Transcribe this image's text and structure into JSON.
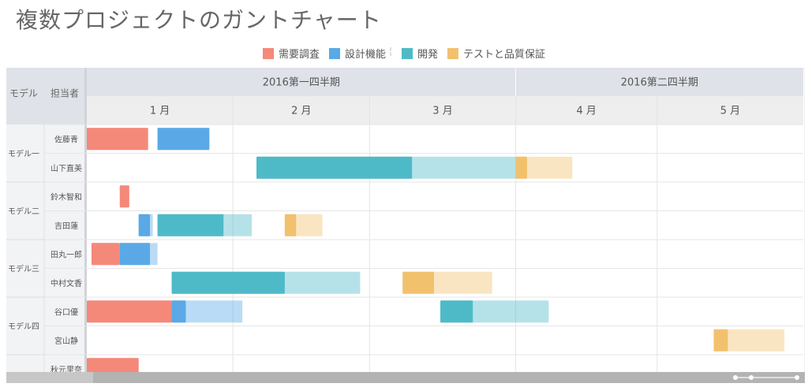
{
  "title": "複数プロジェクトのガントチャート",
  "legend": [
    {
      "label": "需要調査",
      "color": "#f4897a"
    },
    {
      "label": "設計機能",
      "color": "#5aa9e6"
    },
    {
      "label": "開発",
      "color": "#4fbac7"
    },
    {
      "label": "テストと品質保証",
      "color": "#f2c16d"
    }
  ],
  "legend_separator": "¦",
  "colors": {
    "需要調査": "#f4897a",
    "設計機能": "#5aa9e6",
    "開発": "#4fbac7",
    "テストと品質保証": "#f2c16d"
  },
  "chart_data": {
    "type": "gantt",
    "title": "複数プロジェクトのガントチャート",
    "row_header_labels": [
      "モデル",
      "担当者"
    ],
    "x_range": [
      "2016-01-01",
      "2016-05-31"
    ],
    "top_header_groups": [
      {
        "label": "2016第一四半期",
        "start": "2016-01-01",
        "end": "2016-04-01"
      },
      {
        "label": "2016第二四半期",
        "start": "2016-04-01",
        "end": "2016-06-01"
      }
    ],
    "month_ticks": [
      {
        "label": "1 月",
        "start": "2016-01-01",
        "end": "2016-02-01"
      },
      {
        "label": "2 月",
        "start": "2016-02-01",
        "end": "2016-03-01"
      },
      {
        "label": "3 月",
        "start": "2016-03-01",
        "end": "2016-04-01"
      },
      {
        "label": "4 月",
        "start": "2016-04-01",
        "end": "2016-05-01"
      },
      {
        "label": "5 月",
        "start": "2016-05-01",
        "end": "2016-06-01"
      }
    ],
    "groups": [
      {
        "label": "モデル一",
        "rows": [
          "佐藤青",
          "山下直美"
        ]
      },
      {
        "label": "モデル二",
        "rows": [
          "鈴木智和",
          "吉田蓮"
        ]
      },
      {
        "label": "モデル三",
        "rows": [
          "田丸一郎",
          "中村文香"
        ]
      },
      {
        "label": "モデル四",
        "rows": [
          "谷口優",
          "宮山静"
        ]
      },
      {
        "label": "",
        "rows": [
          "秋元里奈"
        ]
      }
    ],
    "tasks": [
      {
        "row": "佐藤青",
        "phase": "需要調査",
        "start": "2016-01-01",
        "end": "2016-01-14",
        "completed": 1
      },
      {
        "row": "佐藤青",
        "phase": "設計機能",
        "start": "2016-01-16",
        "end": "2016-01-27",
        "completed": 1
      },
      {
        "row": "山下直美",
        "phase": "開発",
        "start": "2016-02-06",
        "end": "2016-04-01",
        "completed": 0.6
      },
      {
        "row": "山下直美",
        "phase": "テストと品質保証",
        "start": "2016-04-01",
        "end": "2016-04-13",
        "completed": 0.2
      },
      {
        "row": "鈴木智和",
        "phase": "需要調査",
        "start": "2016-01-08",
        "end": "2016-01-10",
        "completed": 1
      },
      {
        "row": "吉田蓮",
        "phase": "設計機能",
        "start": "2016-01-12",
        "end": "2016-01-15",
        "completed": 0.8
      },
      {
        "row": "吉田蓮",
        "phase": "開発",
        "start": "2016-01-16",
        "end": "2016-02-05",
        "completed": 0.7
      },
      {
        "row": "吉田蓮",
        "phase": "テストと品質保証",
        "start": "2016-02-12",
        "end": "2016-02-20",
        "completed": 0.3
      },
      {
        "row": "田丸一郎",
        "phase": "需要調査",
        "start": "2016-01-02",
        "end": "2016-01-08",
        "completed": 1
      },
      {
        "row": "田丸一郎",
        "phase": "設計機能",
        "start": "2016-01-08",
        "end": "2016-01-16",
        "completed": 0.8
      },
      {
        "row": "中村文香",
        "phase": "開発",
        "start": "2016-01-19",
        "end": "2016-02-28",
        "completed": 0.6
      },
      {
        "row": "中村文香",
        "phase": "テストと品質保証",
        "start": "2016-03-08",
        "end": "2016-03-27",
        "completed": 0.35
      },
      {
        "row": "谷口優",
        "phase": "需要調査",
        "start": "2016-01-01",
        "end": "2016-01-19",
        "completed": 1
      },
      {
        "row": "谷口優",
        "phase": "設計機能",
        "start": "2016-01-19",
        "end": "2016-02-03",
        "completed": 0.2
      },
      {
        "row": "谷口優",
        "phase": "開発",
        "start": "2016-03-16",
        "end": "2016-04-08",
        "completed": 0.3
      },
      {
        "row": "宮山静",
        "phase": "テストと品質保証",
        "start": "2016-05-13",
        "end": "2016-05-28",
        "completed": 0.2
      },
      {
        "row": "秋元里奈",
        "phase": "需要調査",
        "start": "2016-01-01",
        "end": "2016-01-12",
        "completed": 1
      }
    ]
  }
}
